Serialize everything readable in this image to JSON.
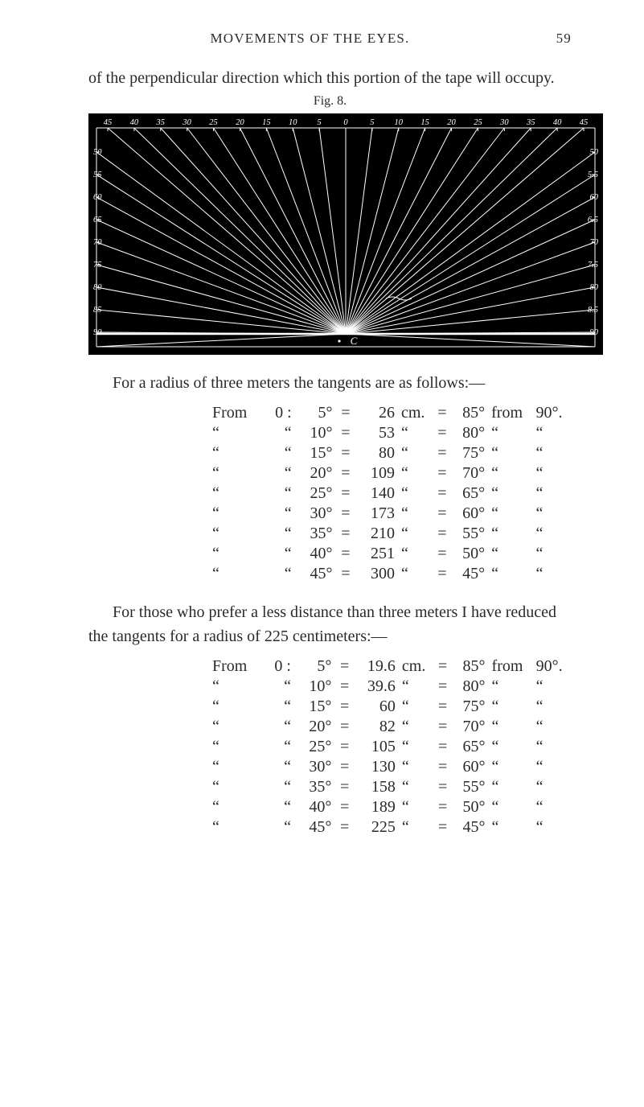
{
  "header": {
    "title": "MOVEMENTS OF THE EYES.",
    "pageNumber": "59"
  },
  "intro": "of the perpendicular direction which this portion of the tape will occupy.",
  "figureLabel": "Fig. 8.",
  "figure": {
    "background": "#000000",
    "lineColor": "#ffffff",
    "cLabel": "C",
    "topTicks": [
      "45",
      "40",
      "35",
      "30",
      "25",
      "20",
      "15",
      "10",
      "5",
      "0",
      "5",
      "10",
      "15",
      "20",
      "25",
      "30",
      "35",
      "40",
      "45"
    ],
    "sideTicksLeft": [
      "50",
      "55",
      "60",
      "65",
      "70",
      "75",
      "80",
      "85",
      "90"
    ],
    "sideTicksRight": [
      "50",
      "5.5",
      "60",
      "6.5",
      "70",
      "7.5",
      "80",
      "8.5",
      "90"
    ],
    "leftEndLabel": "45",
    "rightEndLabel": "45"
  },
  "leadText1": "For a radius of three meters the tangents are as follows:—",
  "table1": {
    "distUnit": "cm.",
    "baseDeg": "90°.",
    "rows": [
      {
        "from": "From",
        "zero": "0 :",
        "ang": "5°",
        "dist": "26",
        "unit": "cm.",
        "res": "85°",
        "from2": "from",
        "base": "90°."
      },
      {
        "from": "“",
        "zero": "“",
        "ang": "10°",
        "dist": "53",
        "unit": "“",
        "res": "80°",
        "from2": "“",
        "base": "“"
      },
      {
        "from": "“",
        "zero": "“",
        "ang": "15°",
        "dist": "80",
        "unit": "“",
        "res": "75°",
        "from2": "“",
        "base": "“"
      },
      {
        "from": "“",
        "zero": "“",
        "ang": "20°",
        "dist": "109",
        "unit": "“",
        "res": "70°",
        "from2": "“",
        "base": "“"
      },
      {
        "from": "“",
        "zero": "“",
        "ang": "25°",
        "dist": "140",
        "unit": "“",
        "res": "65°",
        "from2": "“",
        "base": "“"
      },
      {
        "from": "“",
        "zero": "“",
        "ang": "30°",
        "dist": "173",
        "unit": "“",
        "res": "60°",
        "from2": "“",
        "base": "“"
      },
      {
        "from": "“",
        "zero": "“",
        "ang": "35°",
        "dist": "210",
        "unit": "“",
        "res": "55°",
        "from2": "“",
        "base": "“"
      },
      {
        "from": "“",
        "zero": "“",
        "ang": "40°",
        "dist": "251",
        "unit": "“",
        "res": "50°",
        "from2": "“",
        "base": "“"
      },
      {
        "from": "“",
        "zero": "“",
        "ang": "45°",
        "dist": "300",
        "unit": "“",
        "res": "45°",
        "from2": "“",
        "base": "“"
      }
    ]
  },
  "leadText2": "For those who prefer a less distance than three meters I have reduced the tangents for a radius of 225 centimeters:—",
  "table2": {
    "rows": [
      {
        "from": "From",
        "zero": "0 :",
        "ang": "5°",
        "dist": "19.6",
        "unit": "cm.",
        "res": "85°",
        "from2": "from",
        "base": "90°."
      },
      {
        "from": "“",
        "zero": "“",
        "ang": "10°",
        "dist": "39.6",
        "unit": "“",
        "res": "80°",
        "from2": "“",
        "base": "“"
      },
      {
        "from": "“",
        "zero": "“",
        "ang": "15°",
        "dist": "60",
        "unit": "“",
        "res": "75°",
        "from2": "“",
        "base": "“"
      },
      {
        "from": "“",
        "zero": "“",
        "ang": "20°",
        "dist": "82",
        "unit": "“",
        "res": "70°",
        "from2": "“",
        "base": "“"
      },
      {
        "from": "“",
        "zero": "“",
        "ang": "25°",
        "dist": "105",
        "unit": "“",
        "res": "65°",
        "from2": "“",
        "base": "“"
      },
      {
        "from": "“",
        "zero": "“",
        "ang": "30°",
        "dist": "130",
        "unit": "“",
        "res": "60°",
        "from2": "“",
        "base": "“"
      },
      {
        "from": "“",
        "zero": "“",
        "ang": "35°",
        "dist": "158",
        "unit": "“",
        "res": "55°",
        "from2": "“",
        "base": "“"
      },
      {
        "from": "“",
        "zero": "“",
        "ang": "40°",
        "dist": "189",
        "unit": "“",
        "res": "50°",
        "from2": "“",
        "base": "“"
      },
      {
        "from": "“",
        "zero": "“",
        "ang": "45°",
        "dist": "225",
        "unit": "“",
        "res": "45°",
        "from2": "“",
        "base": "“"
      }
    ]
  }
}
